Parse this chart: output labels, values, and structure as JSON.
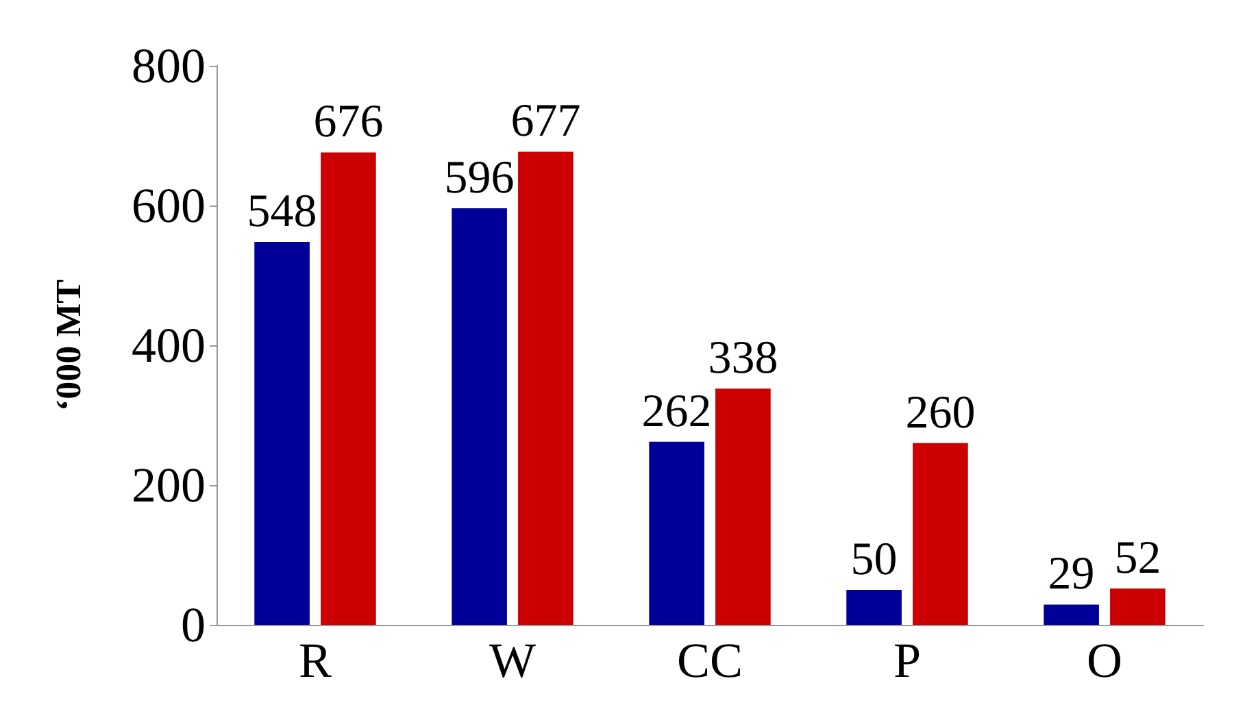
{
  "chart_data": {
    "type": "bar",
    "ylabel": "‘000 MT",
    "categories": [
      "R",
      "W",
      "CC",
      "P",
      "O"
    ],
    "series": [
      {
        "color": "#000099",
        "values": [
          548,
          596,
          262,
          50,
          29
        ]
      },
      {
        "color": "#cc0000",
        "values": [
          676,
          677,
          338,
          260,
          52
        ]
      }
    ],
    "ylim": [
      0,
      800
    ],
    "yticks": [
      0,
      200,
      400,
      600,
      800
    ],
    "data_labels": true,
    "grid": false
  }
}
